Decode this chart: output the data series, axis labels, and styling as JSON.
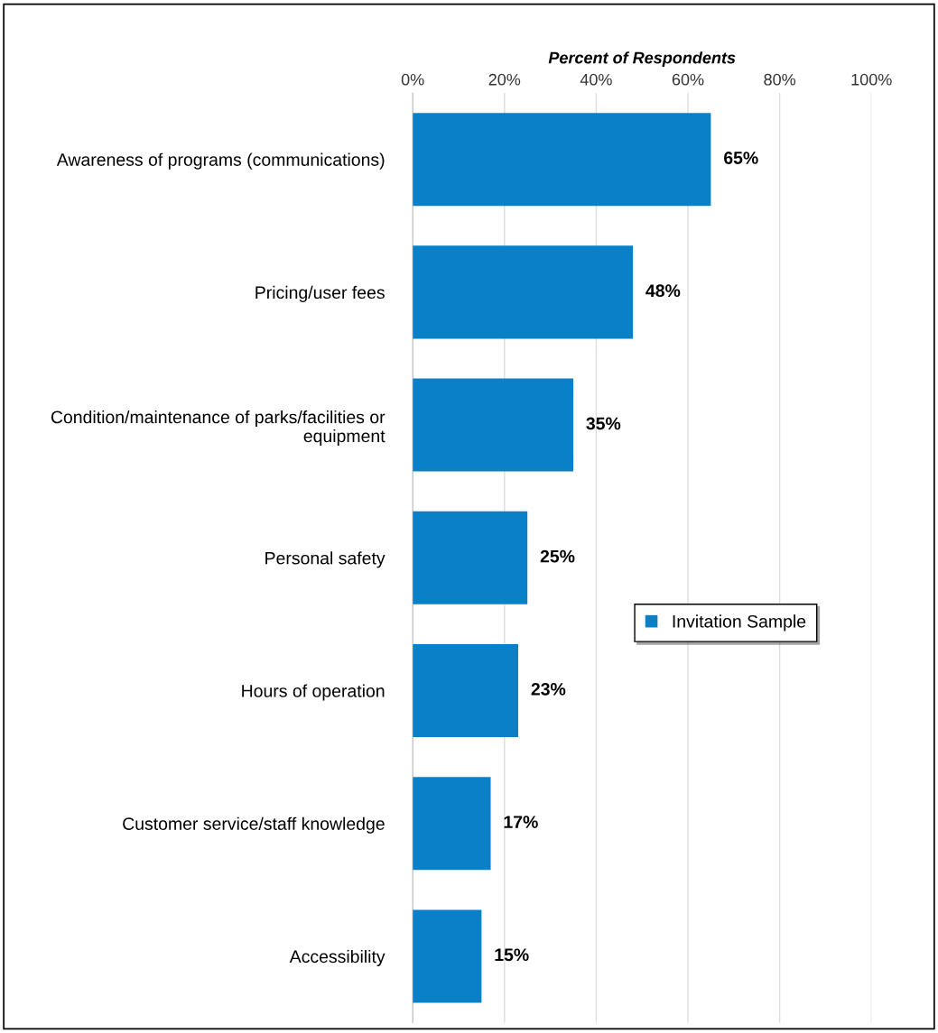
{
  "chart_data": {
    "type": "bar",
    "orientation": "horizontal",
    "xlabel": "Percent of Respondents",
    "categories": [
      "Awareness of programs (communications)",
      "Pricing/user fees",
      "Condition/maintenance of parks/facilities or\nequipment",
      "Personal safety",
      "Hours of operation",
      "Customer service/staff knowledge",
      "Accessibility"
    ],
    "series": [
      {
        "name": "Invitation Sample",
        "color": "#0a80c8",
        "values": [
          65,
          48,
          35,
          25,
          23,
          17,
          15
        ],
        "value_labels": [
          "65%",
          "48%",
          "35%",
          "25%",
          "23%",
          "17%",
          "15%"
        ]
      }
    ],
    "xlim": [
      0,
      100
    ],
    "xticks": [
      {
        "value": 0,
        "label": "0%"
      },
      {
        "value": 20,
        "label": "20%"
      },
      {
        "value": 40,
        "label": "40%"
      },
      {
        "value": 60,
        "label": "60%"
      },
      {
        "value": 80,
        "label": "80%"
      },
      {
        "value": 100,
        "label": "100%"
      }
    ],
    "grid": "x",
    "legend": "right"
  }
}
